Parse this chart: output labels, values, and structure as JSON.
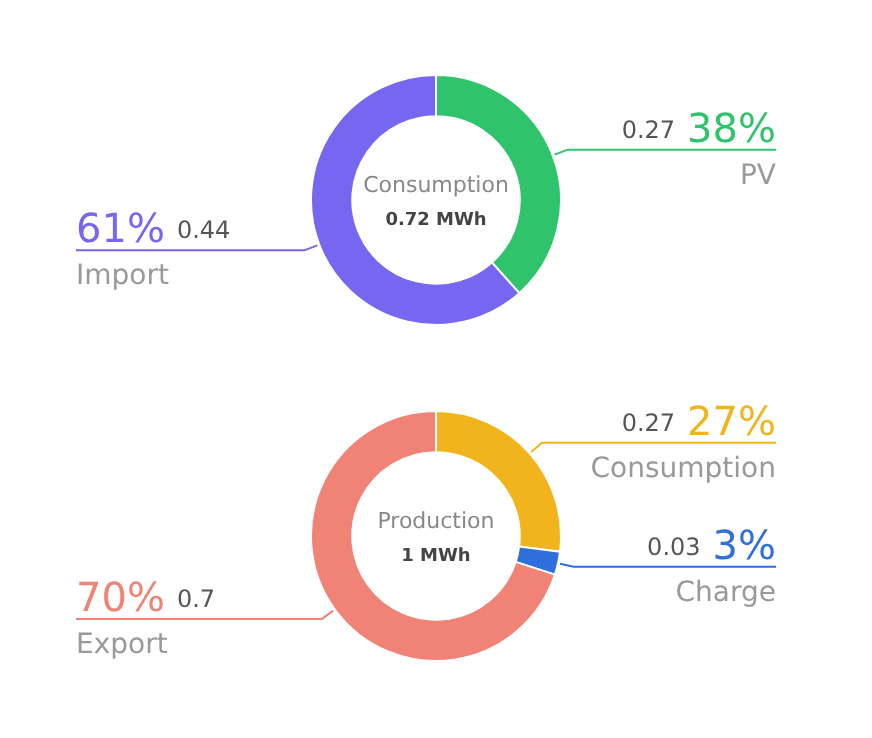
{
  "chart_data": [
    {
      "type": "donut",
      "title": "Consumption",
      "subtitle": "0.72 MWh",
      "categories": [
        "PV",
        "Import"
      ],
      "values": [
        38,
        61
      ],
      "colors": [
        "#2fc36b",
        "#7766f0"
      ],
      "value_labels": [
        "38%",
        "61%"
      ],
      "annotations": [
        {
          "text": "0.27",
          "x": "PV"
        },
        {
          "text": "0.44",
          "x": "Import"
        }
      ],
      "legend": false
    },
    {
      "type": "donut",
      "title": "Production",
      "subtitle": "1 MWh",
      "categories": [
        "Consumption",
        "Charge",
        "Export"
      ],
      "values": [
        27,
        3,
        70
      ],
      "colors": [
        "#f2b41c",
        "#2f6fdb",
        "#f08376"
      ],
      "value_labels": [
        "27%",
        "3%",
        "70%"
      ],
      "annotations": [
        {
          "text": "0.27",
          "x": "Consumption"
        },
        {
          "text": "0.03",
          "x": "Charge"
        },
        {
          "text": "0.7",
          "x": "Export"
        }
      ],
      "legend": false
    }
  ]
}
